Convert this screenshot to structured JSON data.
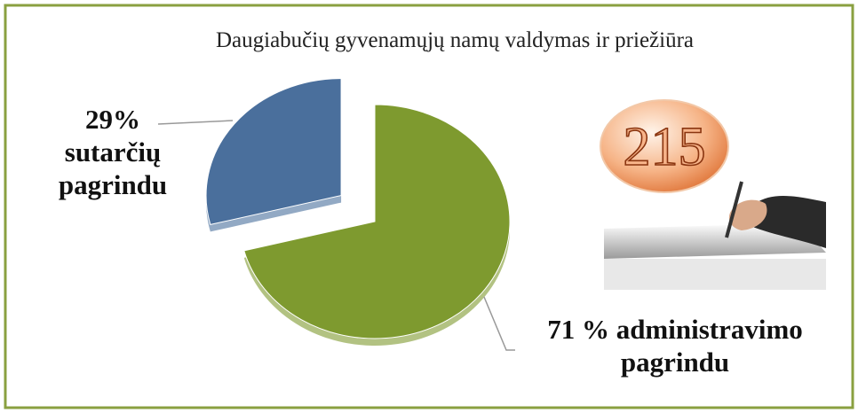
{
  "chart_data": {
    "type": "pie",
    "title": "Daugiabučių gyvenamųjų namų valdymas ir priežiūra",
    "categories": [
      "sutarčių pagrindu",
      "administravimo pagrindu"
    ],
    "values": [
      29,
      71
    ],
    "value_labels": [
      "29%",
      "71 %"
    ],
    "colors": [
      "#4a6f9c",
      "#7e9a2f"
    ],
    "exploded": [
      true,
      false
    ],
    "annotation": "215"
  }
}
